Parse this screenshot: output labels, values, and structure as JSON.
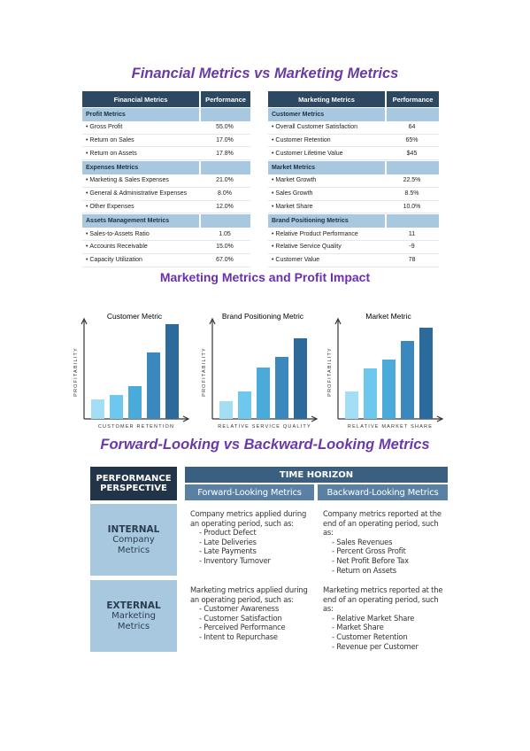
{
  "title": "Financial Metrics vs Marketing Metrics",
  "financial_table": {
    "headers": [
      "Financial Metrics",
      "Performance"
    ],
    "sections": [
      {
        "name": "Profit Metrics",
        "rows": [
          [
            "Gross Profit",
            "55.0%"
          ],
          [
            "Return on Sales",
            "17.0%"
          ],
          [
            "Return on Assets",
            "17.8%"
          ]
        ]
      },
      {
        "name": "Expenses Metrics",
        "rows": [
          [
            "Marketing & Sales Expenses",
            "21.0%"
          ],
          [
            "General & Administrative Expenses",
            "8.0%"
          ],
          [
            "Other Expenses",
            "12.0%"
          ]
        ]
      },
      {
        "name": "Assets Management Metrics",
        "rows": [
          [
            "Sales-to-Assets Ratio",
            "1.05"
          ],
          [
            "Accounts Receivable",
            "15.0%"
          ],
          [
            "Capacity Utilization",
            "67.0%"
          ]
        ]
      }
    ]
  },
  "marketing_table": {
    "headers": [
      "Marketing Metrics",
      "Performance"
    ],
    "sections": [
      {
        "name": "Customer Metrics",
        "rows": [
          [
            "Overall Customer Satisfaction",
            "64"
          ],
          [
            "Customer Retention",
            "65%"
          ],
          [
            "Customer Lifetime Value",
            "$45"
          ]
        ]
      },
      {
        "name": "Market Metrics",
        "rows": [
          [
            "Market Growth",
            "22.5%"
          ],
          [
            "Sales Growth",
            "8.5%"
          ],
          [
            "Market Share",
            "10.0%"
          ]
        ]
      },
      {
        "name": "Brand Positioning Metrics",
        "rows": [
          [
            "Relative Product Performance",
            "11"
          ],
          [
            "Relative Service Quality",
            "-9"
          ],
          [
            "Customer Value",
            "78"
          ]
        ]
      }
    ]
  },
  "charts_title": "Marketing Metrics and Profit Impact",
  "charts": [
    {
      "type": "bar",
      "title": "Customer Metric",
      "x_label": "CUSTOMER RETENTION",
      "y_label": "PROFITABILITY",
      "values": [
        22,
        27,
        37,
        75,
        107
      ],
      "colors": [
        "#a3def5",
        "#6ec8ee",
        "#4aaad9",
        "#3b88be",
        "#2c6a9c"
      ],
      "ylim": [
        0,
        110
      ]
    },
    {
      "type": "bar",
      "title": "Brand Positioning Metric",
      "x_label": "RELATIVE SERVICE QUALITY",
      "y_label": "PROFITABILITY",
      "values": [
        20,
        31,
        58,
        70,
        91
      ],
      "colors": [
        "#a3def5",
        "#6ec8ee",
        "#4aaad9",
        "#3b88be",
        "#2c6a9c"
      ],
      "ylim": [
        0,
        110
      ]
    },
    {
      "type": "bar",
      "title": "Market Metric",
      "x_label": "RELATIVE MARKET SHARE",
      "y_label": "PROFITABILITY",
      "values": [
        31,
        57,
        67,
        88,
        103
      ],
      "colors": [
        "#a3def5",
        "#6ec8ee",
        "#4aaad9",
        "#3b88be",
        "#2c6a9c"
      ],
      "ylim": [
        0,
        110
      ]
    }
  ],
  "horizon": {
    "title": "Forward-Looking vs Backward-Looking Metrics",
    "perspective_header": "PERFORMANCE PERSPECTIVE",
    "time_horizon": "TIME HORIZON",
    "columns": [
      "Forward-Looking Metrics",
      "Backward-Looking Metrics"
    ],
    "rows": [
      {
        "heading": "INTERNAL",
        "sub": "Company Metrics",
        "cells": [
          {
            "intro": "Company metrics applied during an operating period, such as:",
            "items": [
              "Product Defect",
              "Late Deliveries",
              "Late Payments",
              "Inventory Turnover"
            ]
          },
          {
            "intro": "Company metrics reported at the end of an operating period, such as:",
            "items": [
              "Sales Revenues",
              "Percent Gross Profit",
              "Net Profit Before Tax",
              "Return on Assets"
            ]
          }
        ]
      },
      {
        "heading": "EXTERNAL",
        "sub": "Marketing Metrics",
        "cells": [
          {
            "intro": "Marketing metrics applied during an operating period, such as:",
            "items": [
              "Customer Awareness",
              "Customer Satisfaction",
              "Perceived Performance",
              "Intent to Repurchase"
            ]
          },
          {
            "intro": "Marketing metrics reported at the end of an operating period, such as:",
            "items": [
              "Relative Market Share",
              "Market Share",
              "Customer Retention",
              "Revenue per Customer"
            ]
          }
        ]
      }
    ]
  }
}
